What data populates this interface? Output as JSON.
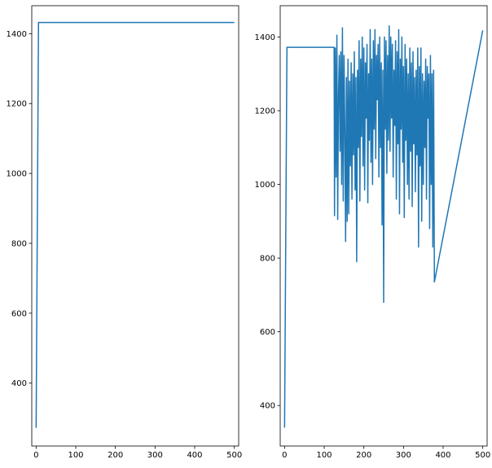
{
  "chart_data": [
    {
      "type": "line",
      "title": "",
      "xlabel": "",
      "ylabel": "",
      "xlim": [
        -11,
        511
      ],
      "ylim": [
        220,
        1480
      ],
      "xticks": [
        0,
        100,
        200,
        300,
        400,
        500
      ],
      "yticks": [
        400,
        600,
        800,
        1000,
        1200,
        1400
      ],
      "grid": false,
      "color": "#1f77b4",
      "series": [
        {
          "x": [
            0,
            6,
            500
          ],
          "values": [
            272,
            1432,
            1432
          ]
        }
      ]
    },
    {
      "type": "line",
      "title": "",
      "xlabel": "",
      "ylabel": "",
      "xlim": [
        -11,
        511
      ],
      "ylim": [
        290,
        1485
      ],
      "xticks": [
        0,
        100,
        200,
        300,
        400,
        500
      ],
      "yticks": [
        400,
        600,
        800,
        1000,
        1200,
        1400
      ],
      "grid": false,
      "color": "#1f77b4",
      "series": [
        {
          "x": [
            0,
            6,
            125,
            126,
            128,
            130,
            132,
            134,
            136,
            138,
            140,
            142,
            144,
            146,
            148,
            150,
            152,
            154,
            156,
            158,
            160,
            162,
            164,
            166,
            168,
            170,
            172,
            174,
            176,
            178,
            180,
            182,
            184,
            186,
            188,
            190,
            192,
            194,
            196,
            198,
            200,
            202,
            204,
            206,
            208,
            210,
            212,
            214,
            216,
            218,
            220,
            222,
            224,
            226,
            228,
            230,
            232,
            234,
            236,
            238,
            240,
            242,
            244,
            246,
            248,
            250,
            252,
            254,
            256,
            258,
            260,
            262,
            264,
            266,
            268,
            270,
            272,
            274,
            276,
            278,
            280,
            282,
            284,
            286,
            288,
            290,
            292,
            294,
            296,
            298,
            300,
            302,
            304,
            306,
            308,
            310,
            312,
            314,
            316,
            318,
            320,
            322,
            324,
            326,
            328,
            330,
            332,
            334,
            336,
            338,
            340,
            342,
            344,
            346,
            348,
            350,
            352,
            354,
            356,
            358,
            360,
            362,
            364,
            366,
            368,
            370,
            372,
            374,
            376,
            378,
            500
          ],
          "values": [
            340,
            1372,
            1372,
            915,
            1370,
            1020,
            1405,
            905,
            1240,
            1350,
            1090,
            1360,
            1000,
            1425,
            955,
            1350,
            1150,
            845,
            1290,
            900,
            1340,
            920,
            1280,
            1050,
            1330,
            960,
            1300,
            1080,
            1360,
            985,
            1290,
            790,
            1310,
            1100,
            1390,
            955,
            1340,
            1130,
            1400,
            1050,
            1370,
            985,
            1330,
            1180,
            1380,
            950,
            1300,
            1120,
            1420,
            1060,
            1340,
            1000,
            1390,
            1150,
            1420,
            1070,
            1350,
            1230,
            1380,
            1020,
            1400,
            1100,
            1330,
            890,
            1310,
            680,
            1400,
            1150,
            1390,
            1030,
            1350,
            1120,
            1430,
            1090,
            1400,
            1180,
            1380,
            1020,
            1310,
            1160,
            1390,
            960,
            1360,
            1110,
            1420,
            920,
            1340,
            1150,
            1400,
            1060,
            1320,
            910,
            1380,
            1120,
            1340,
            1000,
            1300,
            960,
            1370,
            1090,
            1330,
            940,
            1360,
            1110,
            1290,
            980,
            1310,
            1080,
            1370,
            830,
            1320,
            1050,
            1370,
            900,
            1300,
            1000,
            1280,
            1100,
            1340,
            960,
            1320,
            1180,
            1300,
            880,
            1350,
            1000,
            1300,
            830,
            1310,
            735,
            1418
          ]
        }
      ]
    }
  ]
}
